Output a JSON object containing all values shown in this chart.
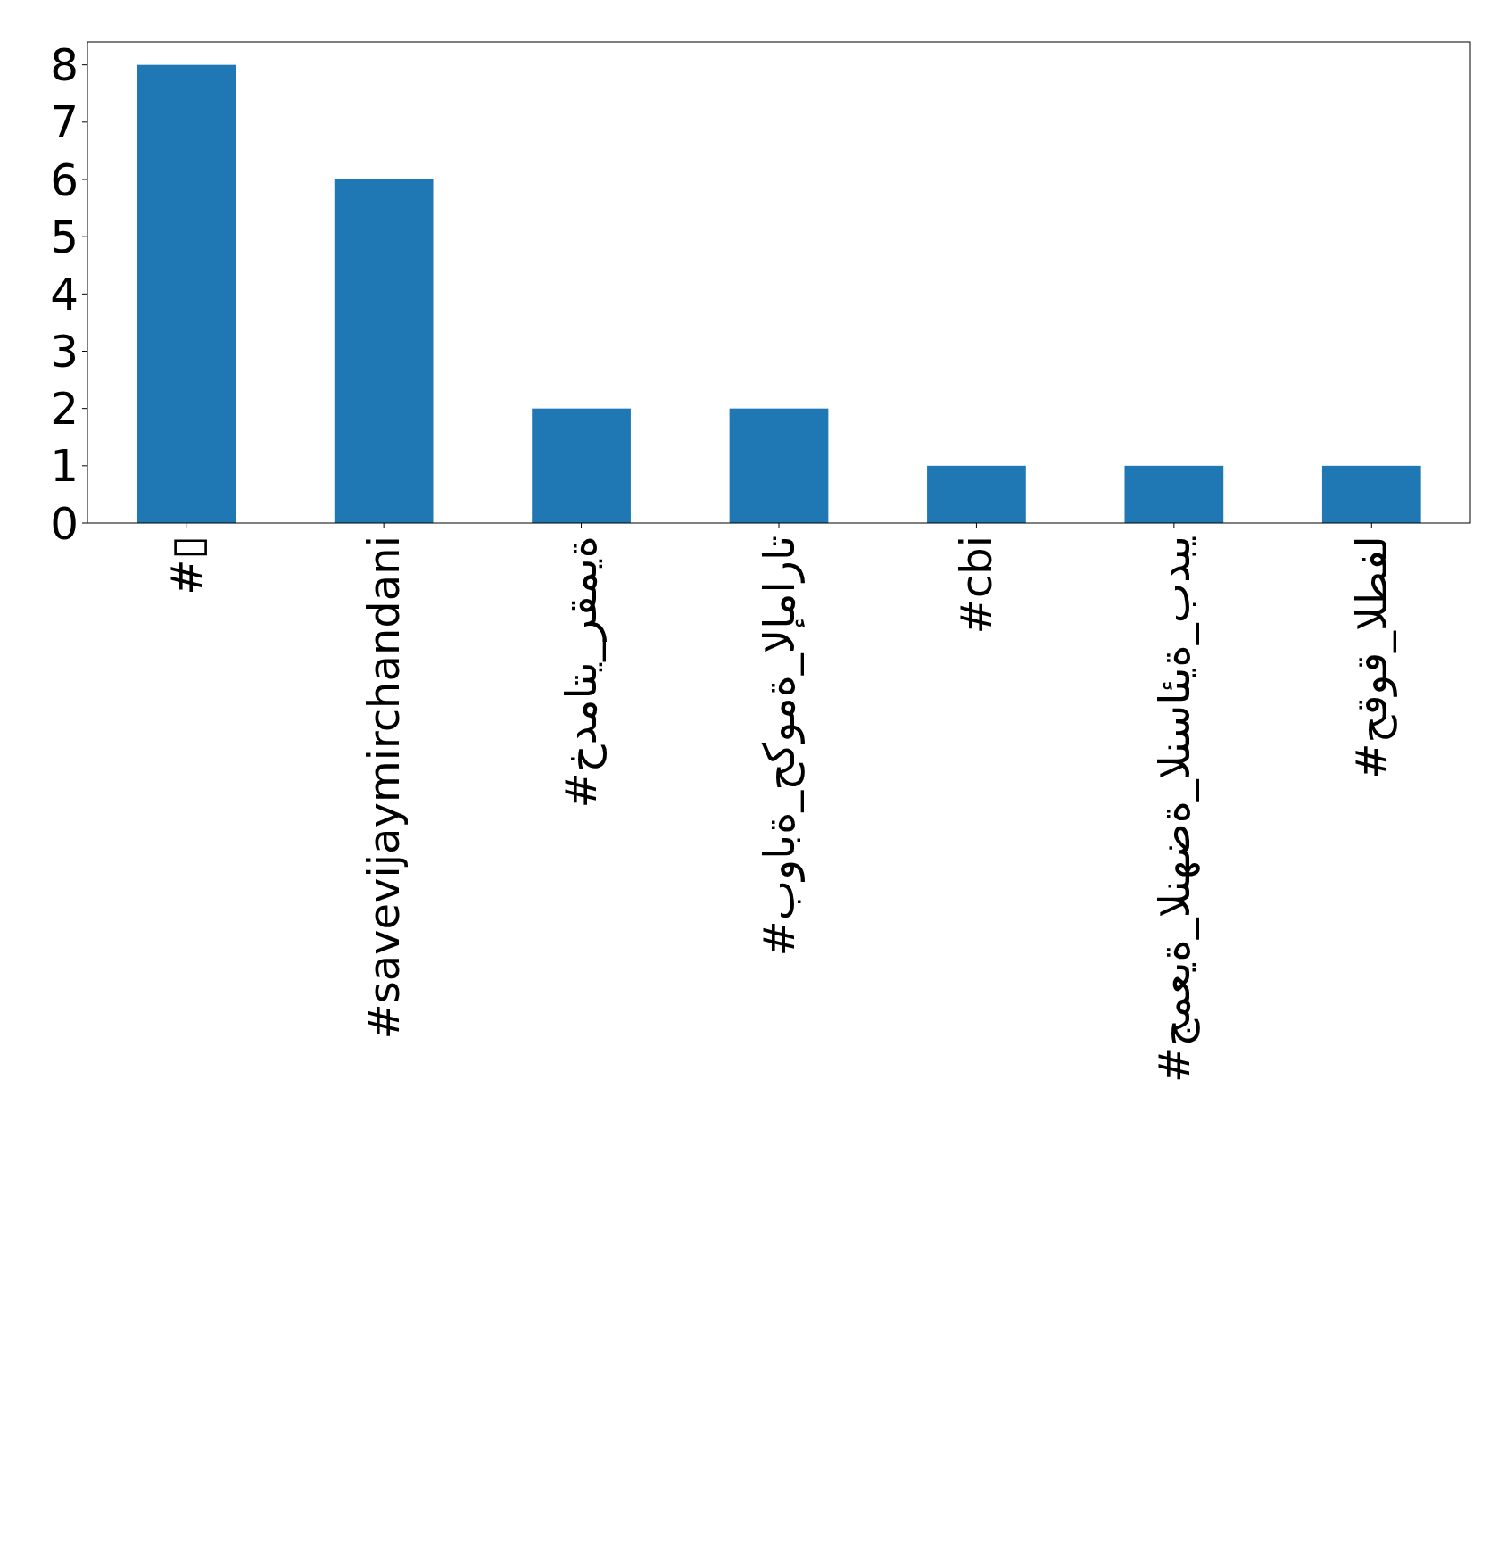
{
  "chart_data": {
    "type": "bar",
    "categories": [
      "#▯",
      "#savevijaymirchandani",
      "#خدماتي_رقمية",
      "#بوابة_حكومة_الإمارات",
      "#cbi",
      "#جمعية_النهضة_النسائية_بدبي",
      "#حقوق_الطفل"
    ],
    "values": [
      8,
      6,
      2,
      2,
      1,
      1,
      1
    ],
    "color": "#1f77b4",
    "ylim": [
      0,
      8.4
    ],
    "yticks": [
      0,
      1,
      2,
      3,
      4,
      5,
      6,
      7,
      8
    ],
    "grid": false
  }
}
